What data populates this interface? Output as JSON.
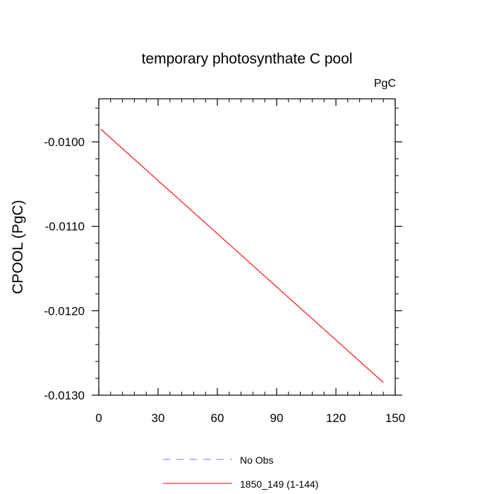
{
  "chart_data": {
    "type": "line",
    "title": "temporary photosynthate C pool",
    "units_label": "PgC",
    "ylabel": "CPOOL  (PgC)",
    "xlabel": "",
    "xlim": [
      0,
      150
    ],
    "ylim": [
      -0.013,
      -0.00949
    ],
    "xticks": [
      0,
      30,
      60,
      90,
      120,
      150
    ],
    "xtick_labels": [
      "0",
      "30",
      "60",
      "90",
      "120",
      "150"
    ],
    "yticks": [
      -0.013,
      -0.012,
      -0.011,
      -0.01
    ],
    "ytick_labels": [
      "-0.0130",
      "-0.0120",
      "-0.0110",
      "-0.0100"
    ],
    "grid": false,
    "legend_position": "bottom-center",
    "series": [
      {
        "name": "1850_149 (1-144)",
        "color": "#ff0000",
        "style": "solid",
        "x": [
          1,
          144
        ],
        "values": [
          -0.00985,
          -0.01285
        ]
      }
    ],
    "legend": [
      {
        "label": "No Obs",
        "color": "#7777dd",
        "style": "dashed"
      },
      {
        "label": "1850_149 (1-144)",
        "color": "#ff0000",
        "style": "solid"
      }
    ]
  }
}
